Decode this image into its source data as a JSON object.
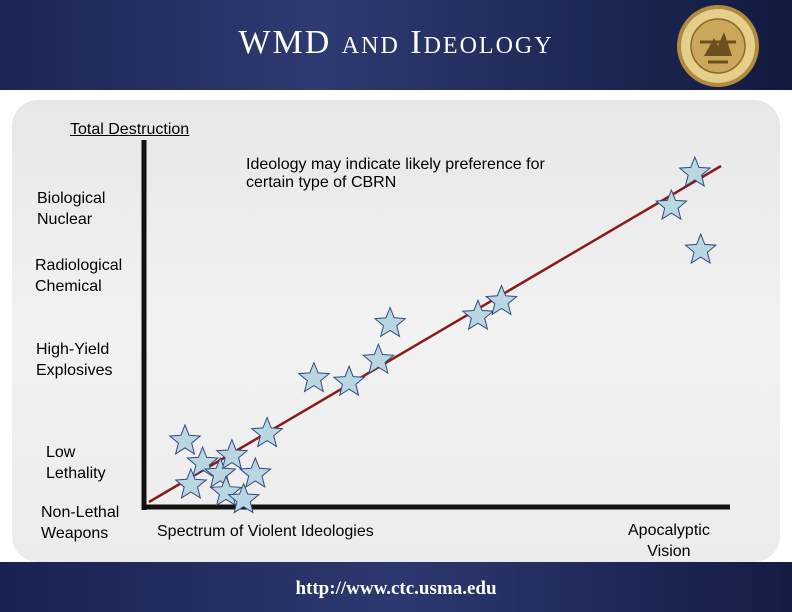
{
  "header": {
    "title": "WMD and Ideology"
  },
  "y_axis": {
    "top_label": "Total Destruction",
    "levels": [
      [
        "Biological",
        "Nuclear"
      ],
      [
        "Radiological",
        "Chemical"
      ],
      [
        "High-Yield",
        "Explosives"
      ],
      [
        "Low",
        "Lethality"
      ],
      [
        "Non-Lethal",
        "Weapons"
      ]
    ]
  },
  "x_axis": {
    "label": "Spectrum of Violent Ideologies",
    "end_label": [
      "Apocalyptic",
      "Vision"
    ]
  },
  "annotation": [
    "Ideology may indicate likely preference for",
    "certain type of CBRN"
  ],
  "footer": {
    "url": "http://www.ctc.usma.edu"
  },
  "colors": {
    "header_bg": "#1c2554",
    "star_fill": "#b8d7e3",
    "star_stroke": "#334a7a",
    "trend_line": "#8b1a1a",
    "axis": "#111111"
  },
  "icons": {
    "seal": "seal-emblem-icon",
    "star": "star-icon"
  },
  "stars": [
    [
      0.07,
      0.18
    ],
    [
      0.1,
      0.12
    ],
    [
      0.13,
      0.09
    ],
    [
      0.08,
      0.06
    ],
    [
      0.15,
      0.14
    ],
    [
      0.14,
      0.04
    ],
    [
      0.19,
      0.09
    ],
    [
      0.17,
      0.02
    ],
    [
      0.21,
      0.2
    ],
    [
      0.29,
      0.35
    ],
    [
      0.35,
      0.34
    ],
    [
      0.4,
      0.4
    ],
    [
      0.42,
      0.5
    ],
    [
      0.57,
      0.52
    ],
    [
      0.61,
      0.56
    ],
    [
      0.9,
      0.82
    ],
    [
      0.94,
      0.91
    ],
    [
      0.95,
      0.7
    ]
  ]
}
